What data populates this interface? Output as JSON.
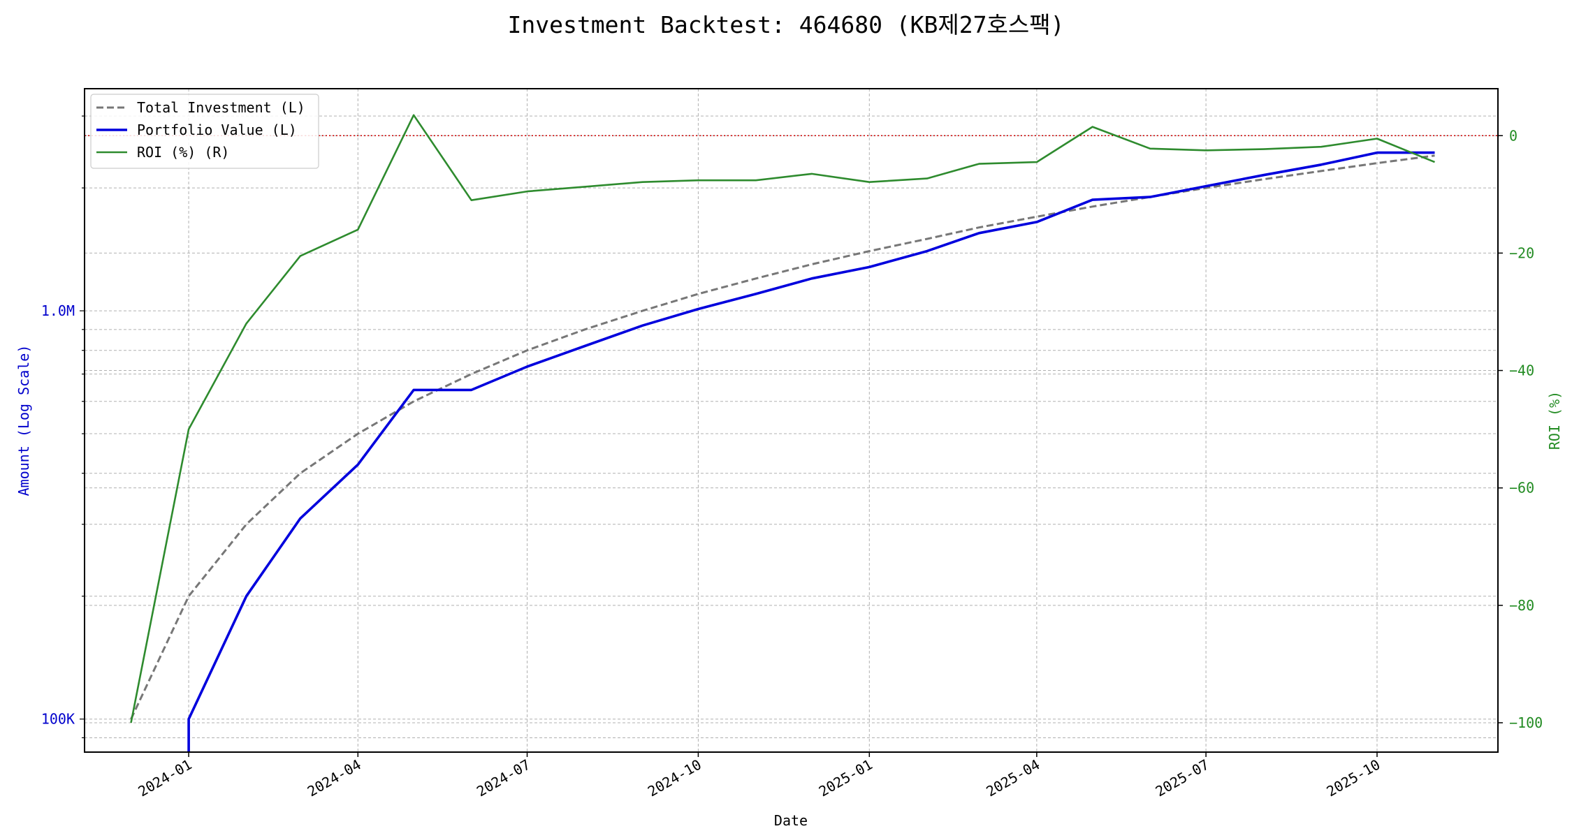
{
  "chart_data": {
    "type": "line",
    "title": "Investment Backtest: 464680 (KB제27호스팩)",
    "xlabel": "Date",
    "ylabel_left": "Amount (Log Scale)",
    "ylabel_right": "ROI (%)",
    "left_axis": {
      "scale": "log",
      "range": [
        83000,
        3500000
      ],
      "ticks": [
        100000,
        1000000
      ],
      "tick_labels": [
        "100K",
        "1.0M"
      ],
      "color": "#0000cc"
    },
    "right_axis": {
      "scale": "linear",
      "range": [
        -105,
        8
      ],
      "ticks": [
        0,
        -20,
        -40,
        -60,
        -80,
        -100
      ],
      "tick_labels": [
        "0",
        "−20",
        "−40",
        "−60",
        "−80",
        "−100"
      ],
      "color": "#228b22"
    },
    "x_range": [
      "2023-11-06",
      "2025-12-05"
    ],
    "x_ticks": [
      "2024-01-01",
      "2024-04-01",
      "2024-07-01",
      "2024-10-01",
      "2025-01-01",
      "2025-04-01",
      "2025-07-01",
      "2025-10-01"
    ],
    "x_tick_labels": [
      "2024-01",
      "2024-04",
      "2024-07",
      "2024-10",
      "2025-01",
      "2025-04",
      "2025-07",
      "2025-10"
    ],
    "zero_line": {
      "value": 0,
      "axis": "right",
      "color": "#cc0000",
      "style": "dotted"
    },
    "grid": true,
    "legend_position": "top-left",
    "series": [
      {
        "name": "Total Investment (L)",
        "axis": "left",
        "color": "#777777",
        "style": "dashed",
        "points": [
          [
            "2023-12-01",
            100000
          ],
          [
            "2024-01-01",
            200000
          ],
          [
            "2024-02-01",
            300000
          ],
          [
            "2024-03-01",
            400000
          ],
          [
            "2024-04-01",
            500000
          ],
          [
            "2024-05-01",
            600000
          ],
          [
            "2024-06-01",
            700000
          ],
          [
            "2024-07-01",
            800000
          ],
          [
            "2024-08-01",
            900000
          ],
          [
            "2024-09-01",
            1000000
          ],
          [
            "2024-10-01",
            1100000
          ],
          [
            "2024-11-01",
            1200000
          ],
          [
            "2024-12-01",
            1300000
          ],
          [
            "2025-01-01",
            1400000
          ],
          [
            "2025-02-01",
            1500000
          ],
          [
            "2025-03-01",
            1600000
          ],
          [
            "2025-04-01",
            1700000
          ],
          [
            "2025-05-01",
            1800000
          ],
          [
            "2025-06-01",
            1900000
          ],
          [
            "2025-07-01",
            2000000
          ],
          [
            "2025-08-01",
            2100000
          ],
          [
            "2025-09-01",
            2200000
          ],
          [
            "2025-10-01",
            2300000
          ],
          [
            "2025-11-01",
            2400000
          ]
        ]
      },
      {
        "name": "Portfolio Value (L)",
        "axis": "left",
        "color": "#0000dd",
        "style": "solid",
        "points": [
          [
            "2024-01-01",
            70000
          ],
          [
            "2024-01-01",
            100000
          ],
          [
            "2024-02-01",
            200000
          ],
          [
            "2024-03-01",
            310000
          ],
          [
            "2024-04-01",
            420000
          ],
          [
            "2024-05-01",
            640000
          ],
          [
            "2024-06-01",
            640000
          ],
          [
            "2024-07-01",
            730000
          ],
          [
            "2024-08-01",
            820000
          ],
          [
            "2024-09-01",
            920000
          ],
          [
            "2024-10-01",
            1010000
          ],
          [
            "2024-11-01",
            1100000
          ],
          [
            "2024-12-01",
            1200000
          ],
          [
            "2025-01-01",
            1280000
          ],
          [
            "2025-02-01",
            1400000
          ],
          [
            "2025-03-01",
            1550000
          ],
          [
            "2025-04-01",
            1650000
          ],
          [
            "2025-05-01",
            1870000
          ],
          [
            "2025-06-01",
            1900000
          ],
          [
            "2025-07-01",
            2020000
          ],
          [
            "2025-08-01",
            2150000
          ],
          [
            "2025-09-01",
            2280000
          ],
          [
            "2025-10-01",
            2440000
          ],
          [
            "2025-11-01",
            2440000
          ]
        ]
      },
      {
        "name": "ROI (%) (R)",
        "axis": "right",
        "color": "#2e8b2e",
        "style": "solid",
        "points": [
          [
            "2023-12-01",
            -100
          ],
          [
            "2024-01-01",
            -50
          ],
          [
            "2024-02-01",
            -32
          ],
          [
            "2024-03-01",
            -20.5
          ],
          [
            "2024-04-01",
            -16
          ],
          [
            "2024-05-01",
            3.5
          ],
          [
            "2024-06-01",
            -11
          ],
          [
            "2024-07-01",
            -9.5
          ],
          [
            "2024-08-01",
            -8.7
          ],
          [
            "2024-09-01",
            -7.9
          ],
          [
            "2024-10-01",
            -7.6
          ],
          [
            "2024-11-01",
            -7.6
          ],
          [
            "2024-12-01",
            -6.5
          ],
          [
            "2025-01-01",
            -7.9
          ],
          [
            "2025-02-01",
            -7.3
          ],
          [
            "2025-03-01",
            -4.8
          ],
          [
            "2025-04-01",
            -4.5
          ],
          [
            "2025-05-01",
            1.5
          ],
          [
            "2025-06-01",
            -2.2
          ],
          [
            "2025-07-01",
            -2.5
          ],
          [
            "2025-08-01",
            -2.3
          ],
          [
            "2025-09-01",
            -1.9
          ],
          [
            "2025-10-01",
            -0.5
          ],
          [
            "2025-11-01",
            -4.5
          ]
        ]
      }
    ]
  }
}
